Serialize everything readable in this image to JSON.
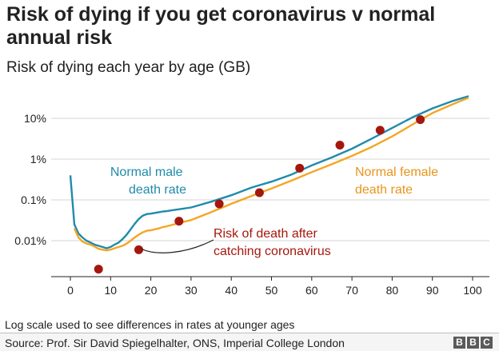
{
  "title": "Risk of dying if you get coronavirus v normal annual risk",
  "subtitle": "Risk of dying each year by age (GB)",
  "footnote": "Log scale used to see differences in rates at younger ages",
  "source": "Source: Prof. Sir David Spiegelhalter, ONS, Imperial College London",
  "logo": [
    "B",
    "B",
    "C"
  ],
  "chart_data": {
    "type": "line",
    "y_scale": "log",
    "xlim": [
      -5,
      101
    ],
    "ylim": [
      0.0025,
      45
    ],
    "x_ticks": [
      0,
      10,
      20,
      30,
      40,
      50,
      60,
      70,
      80,
      90,
      100
    ],
    "y_ticks": [
      {
        "value": 0.01,
        "label": "0.01%"
      },
      {
        "value": 0.1,
        "label": "0.1%"
      },
      {
        "value": 1,
        "label": "1%"
      },
      {
        "value": 10,
        "label": "10%"
      }
    ],
    "grid": "horizontal",
    "series": [
      {
        "name": "Normal male death rate",
        "color": "#1f8bab",
        "x": [
          0,
          1,
          2,
          3,
          4,
          5,
          6,
          7,
          8,
          9,
          10,
          11,
          12,
          13,
          14,
          15,
          16,
          17,
          18,
          19,
          20,
          21,
          22,
          23,
          24,
          25,
          30,
          35,
          40,
          45,
          50,
          55,
          60,
          65,
          70,
          75,
          80,
          85,
          90,
          95,
          99
        ],
        "values": [
          0.4,
          0.025,
          0.015,
          0.012,
          0.01,
          0.009,
          0.008,
          0.0075,
          0.007,
          0.0065,
          0.007,
          0.008,
          0.009,
          0.011,
          0.014,
          0.019,
          0.026,
          0.034,
          0.041,
          0.045,
          0.046,
          0.048,
          0.05,
          0.052,
          0.053,
          0.055,
          0.065,
          0.09,
          0.13,
          0.2,
          0.28,
          0.42,
          0.7,
          1.1,
          1.8,
          3.2,
          5.8,
          10.5,
          17.5,
          26.5,
          35
        ]
      },
      {
        "name": "Normal female death rate",
        "color": "#f5a623",
        "x": [
          1,
          2,
          3,
          4,
          5,
          6,
          7,
          8,
          9,
          10,
          11,
          12,
          13,
          14,
          15,
          16,
          17,
          18,
          19,
          20,
          21,
          22,
          23,
          24,
          25,
          30,
          35,
          40,
          45,
          50,
          55,
          60,
          65,
          70,
          75,
          80,
          85,
          90,
          95,
          99
        ],
        "values": [
          0.02,
          0.012,
          0.0095,
          0.0085,
          0.008,
          0.0072,
          0.0063,
          0.006,
          0.0058,
          0.006,
          0.0065,
          0.007,
          0.0075,
          0.0085,
          0.01,
          0.012,
          0.014,
          0.016,
          0.0175,
          0.018,
          0.019,
          0.02,
          0.0215,
          0.0225,
          0.024,
          0.032,
          0.05,
          0.08,
          0.125,
          0.19,
          0.3,
          0.48,
          0.75,
          1.2,
          2.0,
          3.6,
          7.0,
          13.5,
          22.0,
          32
        ]
      },
      {
        "name": "Risk of death after catching coronavirus",
        "color": "#a5170c",
        "style": "points",
        "x": [
          7,
          17,
          27,
          37,
          47,
          57,
          67,
          77,
          87
        ],
        "values": [
          0.002,
          0.006,
          0.03,
          0.08,
          0.15,
          0.6,
          2.2,
          5.1,
          9.3
        ]
      }
    ]
  }
}
